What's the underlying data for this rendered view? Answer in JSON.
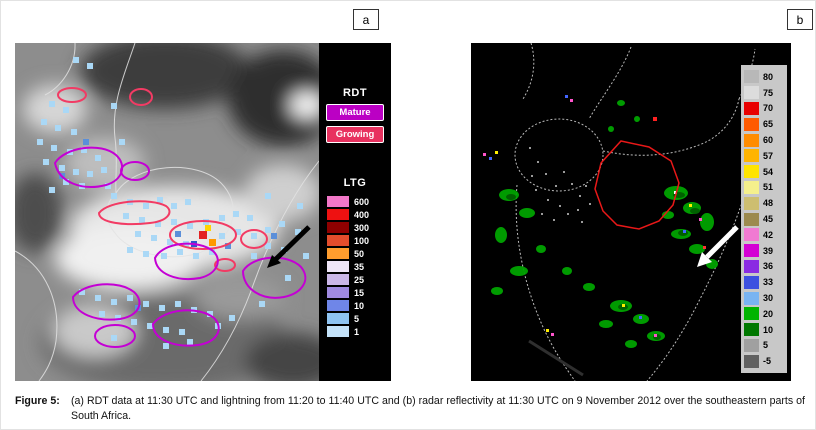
{
  "panel_a": {
    "corner_label": "a",
    "legend": {
      "rdt_title": "RDT",
      "mature_label": "Mature",
      "mature_color": "#bb00c4",
      "growing_label": "Growing",
      "growing_color": "#e8325f",
      "ltg_title": "LTG",
      "ltg_scale": [
        {
          "value": "600",
          "color": "#f277c8"
        },
        {
          "value": "400",
          "color": "#ee1111"
        },
        {
          "value": "300",
          "color": "#8f0000"
        },
        {
          "value": "100",
          "color": "#e34d2c"
        },
        {
          "value": "50",
          "color": "#ff9d2e"
        },
        {
          "value": "35",
          "color": "#efe6f7"
        },
        {
          "value": "25",
          "color": "#cbb7e8"
        },
        {
          "value": "15",
          "color": "#a08ae0"
        },
        {
          "value": "10",
          "color": "#6f86e8"
        },
        {
          "value": "5",
          "color": "#8fc4f2"
        },
        {
          "value": "1",
          "color": "#c4e2f9"
        }
      ]
    }
  },
  "panel_b": {
    "corner_label": "b",
    "dbz_scale": [
      {
        "value": "80",
        "color": "#b8b8b8"
      },
      {
        "value": "75",
        "color": "#dcdcdc"
      },
      {
        "value": "70",
        "color": "#e80000"
      },
      {
        "value": "65",
        "color": "#ff5a00"
      },
      {
        "value": "60",
        "color": "#ff8c00"
      },
      {
        "value": "57",
        "color": "#ffb400"
      },
      {
        "value": "54",
        "color": "#ffe400"
      },
      {
        "value": "51",
        "color": "#f5f08c"
      },
      {
        "value": "48",
        "color": "#cdbe70"
      },
      {
        "value": "45",
        "color": "#9c8a4e"
      },
      {
        "value": "42",
        "color": "#f07ad2"
      },
      {
        "value": "39",
        "color": "#d400d4"
      },
      {
        "value": "36",
        "color": "#8a2be2"
      },
      {
        "value": "33",
        "color": "#3c50e0"
      },
      {
        "value": "30",
        "color": "#79b4f2"
      },
      {
        "value": "20",
        "color": "#00b400"
      },
      {
        "value": "10",
        "color": "#007800"
      },
      {
        "value": "5",
        "color": "#a0a0a0"
      },
      {
        "value": "-5",
        "color": "#606060"
      }
    ]
  },
  "caption": {
    "label": "Figure 5:",
    "text": "(a) RDT data at 11:30 UTC and lightning from 11:20 to 11:40 UTC and (b) radar reflectivity at 11:30 UTC on 9 November 2012 over the southeastern parts of South Africa."
  }
}
